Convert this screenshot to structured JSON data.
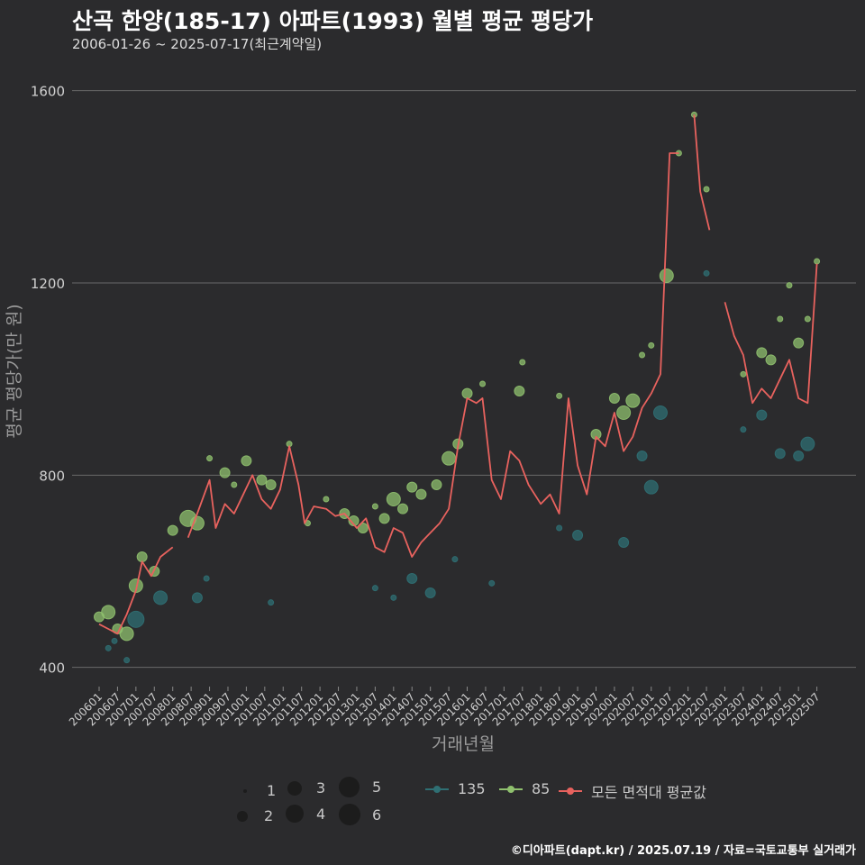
{
  "header": {
    "title": "산곡 한양(185-17) 아파트(1993) 월별 평균 평당가",
    "subtitle": "2006-01-26 ~ 2025-07-17(최근계약일)"
  },
  "caption": "©디아파트(dapt.kr) / 2025.07.19 / 자료=국토교통부 실거래가",
  "colors": {
    "background": "#2b2b2d",
    "grid": "#6a6a6a",
    "s135": "#2f6f73",
    "s85": "#8fc06e",
    "avg": "#e8625e"
  },
  "legend": {
    "sizes": [
      {
        "label": "1",
        "value": 1
      },
      {
        "label": "2",
        "value": 2
      },
      {
        "label": "3",
        "value": 3
      },
      {
        "label": "4",
        "value": 4
      },
      {
        "label": "5",
        "value": 5
      },
      {
        "label": "6",
        "value": 6
      }
    ],
    "series": [
      {
        "label": "135",
        "color": "#2f6f73"
      },
      {
        "label": "85",
        "color": "#8fc06e"
      },
      {
        "label": "모든 면적대 평균값",
        "color": "#e8625e"
      }
    ]
  },
  "chart_data": {
    "type": "scatter",
    "xlabel": "거래년월",
    "ylabel": "평균 평당가(만 원)",
    "ylim": [
      360,
      1680
    ],
    "yticks": [
      400,
      800,
      1200,
      1600
    ],
    "xticks": [
      "200601",
      "200607",
      "200701",
      "200707",
      "200801",
      "200807",
      "200901",
      "200907",
      "201001",
      "201007",
      "201101",
      "201107",
      "201201",
      "201207",
      "201301",
      "201307",
      "201401",
      "201407",
      "201501",
      "201507",
      "201601",
      "201607",
      "201701",
      "201707",
      "201801",
      "201807",
      "201901",
      "201907",
      "202001",
      "202007",
      "202101",
      "202107",
      "202201",
      "202207",
      "202301",
      "202307",
      "202401",
      "202407",
      "202501",
      "202507"
    ],
    "grid": "horizontal",
    "avg_line": [
      {
        "x": "2006-01",
        "y": 490
      },
      {
        "x": "2006-04",
        "y": 480
      },
      {
        "x": "2006-07",
        "y": 470
      },
      {
        "x": "2006-10",
        "y": 510
      },
      {
        "x": "2007-01",
        "y": 560
      },
      {
        "x": "2007-03",
        "y": 620
      },
      {
        "x": "2007-06",
        "y": 590
      },
      {
        "x": "2007-09",
        "y": 630
      },
      {
        "x": "2008-01",
        "y": 650
      },
      {
        "x": "2008-06",
        "y": 670
      },
      {
        "x": "2008-09",
        "y": 720
      },
      {
        "x": "2009-01",
        "y": 790
      },
      {
        "x": "2009-03",
        "y": 690
      },
      {
        "x": "2009-06",
        "y": 740
      },
      {
        "x": "2009-09",
        "y": 720
      },
      {
        "x": "2009-12",
        "y": 760
      },
      {
        "x": "2010-03",
        "y": 800
      },
      {
        "x": "2010-06",
        "y": 750
      },
      {
        "x": "2010-09",
        "y": 730
      },
      {
        "x": "2010-12",
        "y": 770
      },
      {
        "x": "2011-03",
        "y": 860
      },
      {
        "x": "2011-06",
        "y": 780
      },
      {
        "x": "2011-08",
        "y": 700
      },
      {
        "x": "2011-11",
        "y": 735
      },
      {
        "x": "2012-03",
        "y": 730
      },
      {
        "x": "2012-06",
        "y": 715
      },
      {
        "x": "2012-09",
        "y": 720
      },
      {
        "x": "2013-01",
        "y": 690
      },
      {
        "x": "2013-04",
        "y": 710
      },
      {
        "x": "2013-07",
        "y": 650
      },
      {
        "x": "2013-10",
        "y": 640
      },
      {
        "x": "2014-01",
        "y": 690
      },
      {
        "x": "2014-04",
        "y": 680
      },
      {
        "x": "2014-07",
        "y": 630
      },
      {
        "x": "2014-10",
        "y": 660
      },
      {
        "x": "2015-01",
        "y": 680
      },
      {
        "x": "2015-04",
        "y": 700
      },
      {
        "x": "2015-07",
        "y": 730
      },
      {
        "x": "2015-10",
        "y": 860
      },
      {
        "x": "2016-01",
        "y": 960
      },
      {
        "x": "2016-04",
        "y": 950
      },
      {
        "x": "2016-06",
        "y": 960
      },
      {
        "x": "2016-09",
        "y": 790
      },
      {
        "x": "2016-12",
        "y": 750
      },
      {
        "x": "2017-03",
        "y": 850
      },
      {
        "x": "2017-06",
        "y": 830
      },
      {
        "x": "2017-09",
        "y": 780
      },
      {
        "x": "2018-01",
        "y": 740
      },
      {
        "x": "2018-04",
        "y": 760
      },
      {
        "x": "2018-07",
        "y": 720
      },
      {
        "x": "2018-10",
        "y": 960
      },
      {
        "x": "2019-01",
        "y": 820
      },
      {
        "x": "2019-04",
        "y": 760
      },
      {
        "x": "2019-07",
        "y": 880
      },
      {
        "x": "2019-10",
        "y": 860
      },
      {
        "x": "2020-01",
        "y": 930
      },
      {
        "x": "2020-04",
        "y": 850
      },
      {
        "x": "2020-07",
        "y": 880
      },
      {
        "x": "2020-10",
        "y": 940
      },
      {
        "x": "2021-01",
        "y": 970
      },
      {
        "x": "2021-04",
        "y": 1010
      },
      {
        "x": "2021-07",
        "y": 1470
      },
      {
        "x": "2021-10",
        "y": 1470
      },
      {
        "x": "2022-03",
        "y": 1550
      },
      {
        "x": "2022-05",
        "y": 1390
      },
      {
        "x": "2022-08",
        "y": 1310
      },
      {
        "x": "2023-01",
        "y": 1160
      },
      {
        "x": "2023-04",
        "y": 1090
      },
      {
        "x": "2023-07",
        "y": 1050
      },
      {
        "x": "2023-10",
        "y": 950
      },
      {
        "x": "2024-01",
        "y": 980
      },
      {
        "x": "2024-04",
        "y": 960
      },
      {
        "x": "2024-07",
        "y": 1000
      },
      {
        "x": "2024-10",
        "y": 1040
      },
      {
        "x": "2025-01",
        "y": 960
      },
      {
        "x": "2025-04",
        "y": 950
      },
      {
        "x": "2025-07",
        "y": 1240
      }
    ],
    "series": [
      {
        "name": "135",
        "points": [
          {
            "x": "2006-04",
            "y": 440,
            "n": 1
          },
          {
            "x": "2006-06",
            "y": 455,
            "n": 1
          },
          {
            "x": "2006-10",
            "y": 415,
            "n": 1
          },
          {
            "x": "2007-01",
            "y": 500,
            "n": 4
          },
          {
            "x": "2007-09",
            "y": 545,
            "n": 3
          },
          {
            "x": "2008-09",
            "y": 545,
            "n": 2
          },
          {
            "x": "2008-12",
            "y": 585,
            "n": 1
          },
          {
            "x": "2010-09",
            "y": 535,
            "n": 1
          },
          {
            "x": "2013-07",
            "y": 565,
            "n": 1
          },
          {
            "x": "2014-01",
            "y": 545,
            "n": 1
          },
          {
            "x": "2014-07",
            "y": 585,
            "n": 2
          },
          {
            "x": "2015-01",
            "y": 555,
            "n": 2
          },
          {
            "x": "2015-09",
            "y": 625,
            "n": 1
          },
          {
            "x": "2016-09",
            "y": 575,
            "n": 1
          },
          {
            "x": "2018-07",
            "y": 690,
            "n": 1
          },
          {
            "x": "2019-01",
            "y": 675,
            "n": 2
          },
          {
            "x": "2020-04",
            "y": 660,
            "n": 2
          },
          {
            "x": "2020-10",
            "y": 840,
            "n": 2
          },
          {
            "x": "2021-01",
            "y": 775,
            "n": 3
          },
          {
            "x": "2021-04",
            "y": 930,
            "n": 3
          },
          {
            "x": "2022-07",
            "y": 1220,
            "n": 1
          },
          {
            "x": "2023-07",
            "y": 895,
            "n": 1
          },
          {
            "x": "2024-01",
            "y": 925,
            "n": 2
          },
          {
            "x": "2024-07",
            "y": 845,
            "n": 2
          },
          {
            "x": "2025-01",
            "y": 840,
            "n": 2
          },
          {
            "x": "2025-04",
            "y": 865,
            "n": 3
          }
        ]
      },
      {
        "name": "85",
        "points": [
          {
            "x": "2006-01",
            "y": 505,
            "n": 2
          },
          {
            "x": "2006-04",
            "y": 515,
            "n": 3
          },
          {
            "x": "2006-07",
            "y": 480,
            "n": 2
          },
          {
            "x": "2006-10",
            "y": 470,
            "n": 3
          },
          {
            "x": "2007-01",
            "y": 570,
            "n": 3
          },
          {
            "x": "2007-03",
            "y": 630,
            "n": 2
          },
          {
            "x": "2007-07",
            "y": 600,
            "n": 2
          },
          {
            "x": "2008-01",
            "y": 685,
            "n": 2
          },
          {
            "x": "2008-06",
            "y": 710,
            "n": 4
          },
          {
            "x": "2008-09",
            "y": 700,
            "n": 3
          },
          {
            "x": "2009-01",
            "y": 835,
            "n": 1
          },
          {
            "x": "2009-06",
            "y": 805,
            "n": 2
          },
          {
            "x": "2009-09",
            "y": 780,
            "n": 1
          },
          {
            "x": "2010-01",
            "y": 830,
            "n": 2
          },
          {
            "x": "2010-06",
            "y": 790,
            "n": 2
          },
          {
            "x": "2010-09",
            "y": 780,
            "n": 2
          },
          {
            "x": "2011-03",
            "y": 865,
            "n": 1
          },
          {
            "x": "2011-09",
            "y": 700,
            "n": 1
          },
          {
            "x": "2012-03",
            "y": 750,
            "n": 1
          },
          {
            "x": "2012-09",
            "y": 720,
            "n": 2
          },
          {
            "x": "2012-12",
            "y": 705,
            "n": 2
          },
          {
            "x": "2013-03",
            "y": 690,
            "n": 2
          },
          {
            "x": "2013-07",
            "y": 735,
            "n": 1
          },
          {
            "x": "2013-10",
            "y": 710,
            "n": 2
          },
          {
            "x": "2014-01",
            "y": 750,
            "n": 3
          },
          {
            "x": "2014-04",
            "y": 730,
            "n": 2
          },
          {
            "x": "2014-07",
            "y": 775,
            "n": 2
          },
          {
            "x": "2014-10",
            "y": 760,
            "n": 2
          },
          {
            "x": "2015-03",
            "y": 780,
            "n": 2
          },
          {
            "x": "2015-07",
            "y": 835,
            "n": 3
          },
          {
            "x": "2015-10",
            "y": 865,
            "n": 2
          },
          {
            "x": "2016-01",
            "y": 970,
            "n": 2
          },
          {
            "x": "2016-06",
            "y": 990,
            "n": 1
          },
          {
            "x": "2017-06",
            "y": 975,
            "n": 2
          },
          {
            "x": "2017-07",
            "y": 1035,
            "n": 1
          },
          {
            "x": "2018-07",
            "y": 965,
            "n": 1
          },
          {
            "x": "2019-07",
            "y": 885,
            "n": 2
          },
          {
            "x": "2020-01",
            "y": 960,
            "n": 2
          },
          {
            "x": "2020-04",
            "y": 930,
            "n": 3
          },
          {
            "x": "2020-07",
            "y": 955,
            "n": 3
          },
          {
            "x": "2020-10",
            "y": 1050,
            "n": 1
          },
          {
            "x": "2021-01",
            "y": 1070,
            "n": 1
          },
          {
            "x": "2021-06",
            "y": 1215,
            "n": 3
          },
          {
            "x": "2021-10",
            "y": 1470,
            "n": 1
          },
          {
            "x": "2022-03",
            "y": 1550,
            "n": 1
          },
          {
            "x": "2022-07",
            "y": 1395,
            "n": 1
          },
          {
            "x": "2023-07",
            "y": 1010,
            "n": 1
          },
          {
            "x": "2024-01",
            "y": 1055,
            "n": 2
          },
          {
            "x": "2024-04",
            "y": 1040,
            "n": 2
          },
          {
            "x": "2024-07",
            "y": 1125,
            "n": 1
          },
          {
            "x": "2024-10",
            "y": 1195,
            "n": 1
          },
          {
            "x": "2025-01",
            "y": 1075,
            "n": 2
          },
          {
            "x": "2025-04",
            "y": 1125,
            "n": 1
          },
          {
            "x": "2025-07",
            "y": 1245,
            "n": 1
          }
        ]
      }
    ]
  }
}
